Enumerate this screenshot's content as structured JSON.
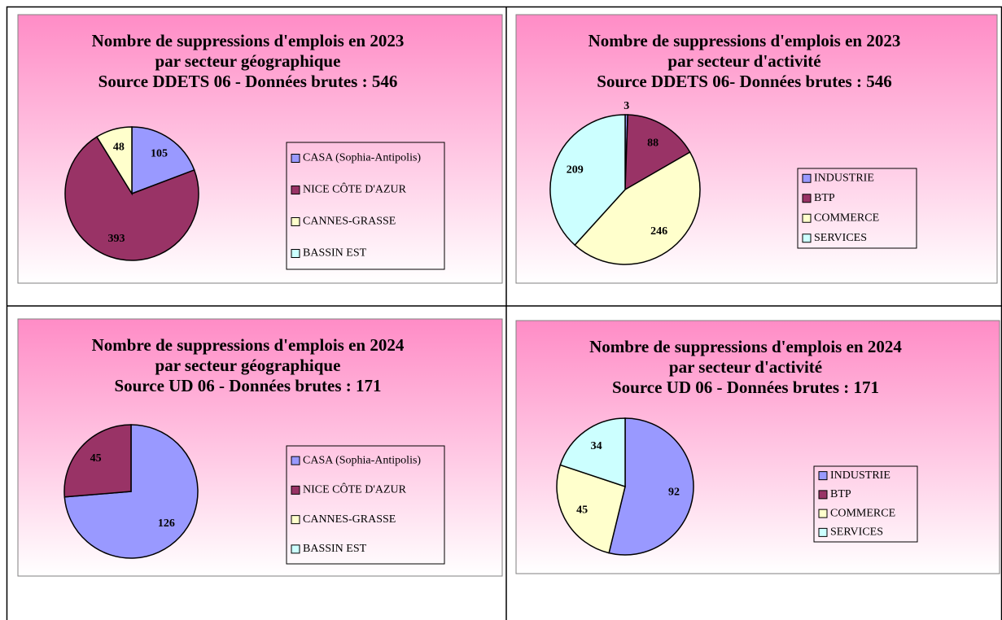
{
  "chart_data": [
    {
      "type": "pie",
      "title": [
        "Nombre de suppressions d'emplois en 2023",
        "par secteur géographique",
        "Source DDETS 06 - Données brutes : 546"
      ],
      "categories": [
        "CASA (Sophia-Antipolis)",
        "NICE CÔTE D'AZUR",
        "CANNES-GRASSE",
        "BASSIN EST"
      ],
      "values": [
        105,
        393,
        48,
        null
      ],
      "colors": [
        "#9999ff",
        "#993366",
        "#ffffcc",
        "#ccffff"
      ]
    },
    {
      "type": "pie",
      "title": [
        "Nombre de suppressions d'emplois en 2023",
        "par secteur d'activité",
        "Source DDETS 06- Données brutes : 546"
      ],
      "categories": [
        "INDUSTRIE",
        "BTP",
        "COMMERCE",
        "SERVICES"
      ],
      "values": [
        3,
        88,
        246,
        209
      ],
      "colors": [
        "#9999ff",
        "#993366",
        "#ffffcc",
        "#ccffff"
      ]
    },
    {
      "type": "pie",
      "title": [
        "Nombre de suppressions d'emplois en 2024",
        "par secteur géographique",
        "Source UD 06 - Données brutes : 171"
      ],
      "categories": [
        "CASA (Sophia-Antipolis)",
        "NICE CÔTE D'AZUR",
        "CANNES-GRASSE",
        "BASSIN EST"
      ],
      "values": [
        126,
        45,
        null,
        null
      ],
      "colors": [
        "#9999ff",
        "#993366",
        "#ffffcc",
        "#ccffff"
      ]
    },
    {
      "type": "pie",
      "title": [
        "Nombre de suppressions d'emplois en 2024",
        "par secteur d'activité",
        "Source UD 06 - Données brutes : 171"
      ],
      "categories": [
        "INDUSTRIE",
        "BTP",
        "COMMERCE",
        "SERVICES"
      ],
      "values": [
        92,
        null,
        45,
        34
      ],
      "colors": [
        "#9999ff",
        "#993366",
        "#ffffcc",
        "#ccffff"
      ]
    }
  ]
}
